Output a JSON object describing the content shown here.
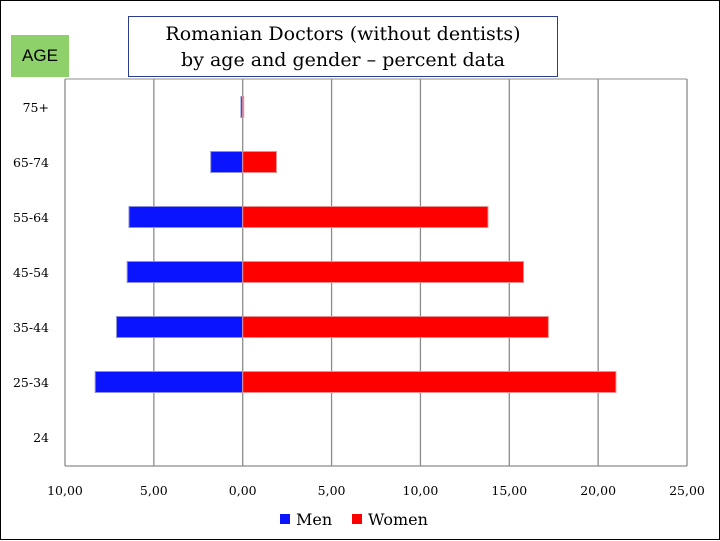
{
  "chart_data": {
    "type": "bar",
    "orientation": "horizontal-population-pyramid",
    "title_lines": [
      "Romanian Doctors (without dentists)",
      "by age and gender – percent data"
    ],
    "axis_label_y": "AGE",
    "categories": [
      "75+",
      "65-74",
      "55-64",
      "45-54",
      "35-44",
      "25-34",
      "24"
    ],
    "series": [
      {
        "name": "Men",
        "color": "#0a14ff",
        "values": [
          0.1,
          1.8,
          6.4,
          6.5,
          7.1,
          8.3,
          0
        ]
      },
      {
        "name": "Women",
        "color": "#ff0000",
        "values": [
          0.05,
          1.9,
          13.8,
          15.8,
          17.2,
          21.0,
          0
        ]
      }
    ],
    "xlim": [
      -10,
      25
    ],
    "x_ticks": [
      -10,
      -5,
      0,
      5,
      10,
      15,
      20,
      25
    ],
    "x_tick_labels": [
      "10,00",
      "5,00",
      "0,00",
      "5,00",
      "10,00",
      "15,00",
      "20,00",
      "25,00"
    ],
    "grid": true,
    "legend_position": "bottom-center"
  }
}
